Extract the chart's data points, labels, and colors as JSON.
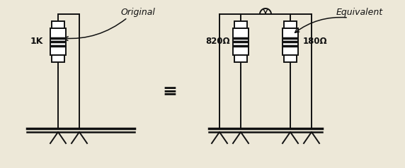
{
  "bg_color": "#ede8d8",
  "line_color": "#111111",
  "title": "Original",
  "title2": "Equivalent",
  "label_1k": "1K",
  "label_820": "820Ω",
  "label_180": "180Ω",
  "fig_width": 5.72,
  "fig_height": 2.38,
  "dpi": 100
}
